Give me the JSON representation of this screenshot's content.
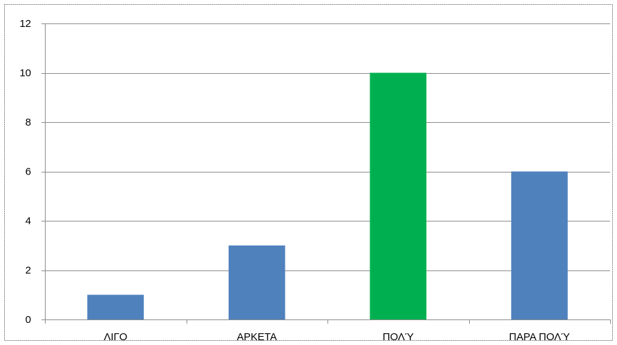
{
  "chart_data": {
    "type": "bar",
    "categories": [
      "ΛΙΓΟ",
      "ΑΡΚΕΤΑ",
      "ΠΟΛΎ",
      "ΠΑΡΑ ΠΟΛΎ"
    ],
    "values": [
      1,
      3,
      10,
      6
    ],
    "bar_colors": [
      "#4f81bd",
      "#4f81bd",
      "#00b050",
      "#4f81bd"
    ],
    "title": "",
    "xlabel": "",
    "ylabel": "",
    "ylim": [
      0,
      12
    ],
    "yticks": [
      0,
      2,
      4,
      6,
      8,
      10,
      12
    ],
    "grid": true,
    "legend": "none"
  },
  "colors": {
    "gridline": "#8c8c8c",
    "frame_border": "#7f7f7f",
    "default_bar": "#4f81bd",
    "highlight_bar": "#00b050"
  }
}
